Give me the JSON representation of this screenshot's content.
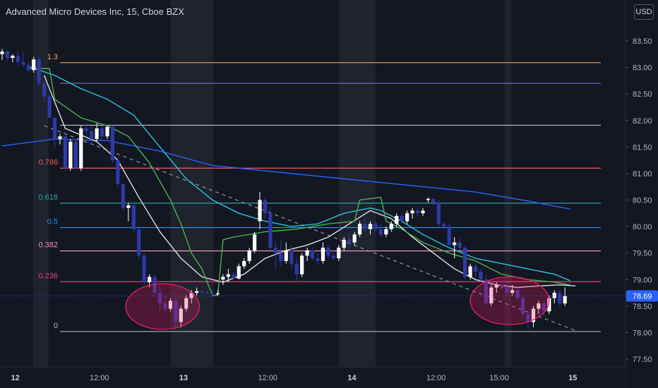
{
  "header": {
    "title": "Advanced Micro Devices Inc, 15, Cboe BZX",
    "currency_button": "USD"
  },
  "colors": {
    "background": "#131722",
    "up_candle": "#ffffff",
    "down_candle": "#2e39a8",
    "fib_1_3": "#f0a35a",
    "fib_1_0": "#7e57c2",
    "fib_0_786": "#f2565b",
    "fib_0_618": "#26a69a",
    "fib_0_5": "#2196f3",
    "fib_0_382": "#f48fb1",
    "fib_0_236": "#ec407a",
    "fib_0": "#b2b5be",
    "sma_slow": "#2962ff",
    "sma_mid": "#26c6da",
    "sma_fast": "#e0e0e0",
    "sma_step": "#4caf50",
    "trendline": "#9598a1",
    "highlight_ellipse": "#e91e63",
    "last_price_badge": "#2962ff"
  },
  "chart_data": {
    "type": "candlestick",
    "symbol": "Advanced Micro Devices Inc",
    "interval": "15",
    "exchange": "Cboe BZX",
    "currency": "USD",
    "ylim": [
      77.4,
      84.0
    ],
    "y_ticks": [
      "83.50",
      "83.00",
      "82.50",
      "82.00",
      "81.50",
      "81.00",
      "80.50",
      "80.00",
      "79.50",
      "79.00",
      "78.50",
      "78.00",
      "77.50"
    ],
    "x_ticks": [
      {
        "label": "12",
        "bold": true,
        "bar": 2.5
      },
      {
        "label": "12:00",
        "bold": false,
        "bar": 18.5
      },
      {
        "label": "13",
        "bold": true,
        "bar": 34.5
      },
      {
        "label": "12:00",
        "bold": false,
        "bar": 50.5
      },
      {
        "label": "14",
        "bold": true,
        "bar": 66.5
      },
      {
        "label": "12:00",
        "bold": false,
        "bar": 82.5
      },
      {
        "label": "15:00",
        "bold": false,
        "bar": 94.5
      },
      {
        "label": "15",
        "bold": true,
        "bar": 108.5
      }
    ],
    "last_price": 78.69,
    "fib_levels": [
      {
        "label": "1.3",
        "value": 83.09,
        "color_key": "fib_1_3"
      },
      {
        "label": "",
        "value": 82.7,
        "color_key": "fib_1_0"
      },
      {
        "label": "",
        "value": 81.91,
        "color_key": "fib_0"
      },
      {
        "label": "0.786",
        "value": 81.1,
        "color_key": "fib_0_786"
      },
      {
        "label": "0.618",
        "value": 80.44,
        "color_key": "fib_0_618"
      },
      {
        "label": "0.5",
        "value": 79.98,
        "color_key": "fib_0_5"
      },
      {
        "label": "0.382",
        "value": 79.54,
        "color_key": "fib_0_382"
      },
      {
        "label": "0.236",
        "value": 78.96,
        "color_key": "fib_0_236"
      },
      {
        "label": "0",
        "value": 78.02,
        "color_key": "fib_0"
      }
    ],
    "session_shading_bars": [
      [
        5.9,
        8.8
      ],
      [
        32.0,
        40.2
      ],
      [
        64.0,
        71.0
      ],
      [
        95.5,
        96.8
      ]
    ],
    "trendline": {
      "from": [
        8.0,
        81.9
      ],
      "to": [
        109.5,
        78.02
      ]
    },
    "ellipses": [
      {
        "bar": 30.5,
        "value": 78.49,
        "rx_bars": 7.0,
        "ry_value": 0.43
      },
      {
        "bar": 96.5,
        "value": 78.6,
        "rx_bars": 7.5,
        "ry_value": 0.45
      }
    ],
    "candles": [
      [
        83.25,
        83.35,
        83.14,
        83.3
      ],
      [
        83.3,
        83.32,
        83.12,
        83.18
      ],
      [
        83.18,
        83.25,
        83.1,
        83.22
      ],
      [
        83.22,
        83.3,
        83.02,
        83.1
      ],
      [
        83.1,
        83.3,
        83.0,
        83.05
      ],
      [
        83.05,
        83.1,
        82.9,
        82.95
      ],
      [
        82.95,
        83.2,
        82.9,
        83.15
      ],
      [
        83.15,
        83.2,
        82.65,
        82.7
      ],
      [
        82.7,
        82.75,
        82.35,
        82.45
      ],
      [
        82.45,
        82.5,
        82.05,
        82.05
      ],
      [
        82.05,
        82.05,
        81.5,
        81.65
      ],
      [
        81.65,
        81.75,
        81.55,
        81.7
      ],
      [
        81.7,
        81.8,
        81.05,
        81.1
      ],
      [
        81.1,
        81.65,
        81.05,
        81.6
      ],
      [
        81.6,
        81.65,
        81.1,
        81.1
      ],
      [
        81.1,
        81.9,
        81.05,
        81.85
      ],
      [
        81.85,
        81.95,
        81.7,
        81.8
      ],
      [
        81.8,
        81.9,
        81.55,
        81.65
      ],
      [
        81.65,
        81.95,
        81.6,
        81.85
      ],
      [
        81.85,
        81.9,
        81.6,
        81.7
      ],
      [
        81.7,
        81.9,
        81.65,
        81.88
      ],
      [
        81.88,
        81.9,
        81.2,
        81.25
      ],
      [
        81.25,
        81.3,
        80.75,
        80.8
      ],
      [
        80.8,
        80.8,
        80.3,
        80.35
      ],
      [
        80.35,
        80.45,
        80.1,
        80.4
      ],
      [
        80.4,
        80.42,
        79.9,
        79.95
      ],
      [
        79.95,
        80.0,
        79.4,
        79.45
      ],
      [
        79.45,
        79.5,
        78.9,
        78.95
      ],
      [
        78.95,
        79.1,
        78.85,
        79.05
      ],
      [
        79.05,
        79.1,
        78.7,
        78.75
      ],
      [
        78.75,
        78.9,
        78.4,
        78.55
      ],
      [
        78.55,
        78.7,
        78.35,
        78.45
      ],
      [
        78.45,
        78.65,
        78.4,
        78.6
      ],
      [
        78.6,
        78.65,
        78.05,
        78.2
      ],
      [
        78.2,
        78.5,
        78.1,
        78.45
      ],
      [
        78.45,
        78.7,
        78.4,
        78.65
      ],
      [
        78.65,
        78.8,
        78.55,
        78.75
      ],
      [
        78.75,
        78.85,
        78.7,
        78.78
      ],
      [
        78.78,
        78.8,
        78.72,
        78.76
      ],
      [
        78.76,
        78.8,
        78.72,
        78.74
      ],
      [
        78.74,
        78.8,
        78.7,
        78.72
      ],
      [
        78.72,
        78.8,
        78.7,
        78.74
      ],
      [
        79.0,
        79.1,
        78.9,
        79.05
      ],
      [
        79.05,
        79.2,
        78.95,
        79.1
      ],
      [
        79.1,
        79.15,
        79.0,
        79.02
      ],
      [
        79.02,
        79.3,
        79.0,
        79.25
      ],
      [
        79.25,
        79.4,
        79.2,
        79.35
      ],
      [
        79.35,
        79.6,
        79.3,
        79.55
      ],
      [
        79.55,
        79.9,
        79.5,
        79.85
      ],
      [
        80.1,
        80.65,
        79.95,
        80.5
      ],
      [
        80.5,
        80.55,
        80.15,
        80.25
      ],
      [
        80.25,
        80.35,
        79.55,
        79.6
      ],
      [
        79.6,
        79.7,
        79.2,
        79.5
      ],
      [
        79.5,
        79.75,
        79.25,
        79.35
      ],
      [
        79.35,
        79.7,
        79.3,
        79.55
      ],
      [
        79.55,
        79.65,
        79.2,
        79.3
      ],
      [
        79.3,
        79.4,
        78.95,
        79.1
      ],
      [
        79.1,
        79.5,
        79.05,
        79.45
      ],
      [
        79.45,
        79.6,
        79.35,
        79.55
      ],
      [
        79.55,
        79.6,
        79.35,
        79.4
      ],
      [
        79.4,
        79.5,
        79.3,
        79.35
      ],
      [
        79.35,
        79.7,
        79.3,
        79.6
      ],
      [
        79.6,
        79.65,
        79.4,
        79.45
      ],
      [
        79.45,
        79.55,
        79.35,
        79.4
      ],
      [
        79.4,
        79.65,
        79.35,
        79.6
      ],
      [
        79.6,
        79.8,
        79.55,
        79.75
      ],
      [
        79.75,
        79.85,
        79.6,
        79.7
      ],
      [
        79.7,
        79.9,
        79.65,
        79.85
      ],
      [
        79.85,
        80.1,
        79.8,
        80.05
      ],
      [
        80.05,
        80.15,
        79.9,
        79.95
      ],
      [
        79.95,
        80.1,
        79.85,
        80.05
      ],
      [
        80.05,
        80.1,
        79.9,
        79.95
      ],
      [
        79.95,
        80.05,
        79.8,
        79.85
      ],
      [
        79.85,
        80.0,
        79.8,
        79.95
      ],
      [
        79.95,
        80.1,
        79.9,
        80.05
      ],
      [
        80.05,
        80.25,
        80.0,
        80.2
      ],
      [
        80.2,
        80.25,
        80.05,
        80.1
      ],
      [
        80.1,
        80.3,
        80.05,
        80.25
      ],
      [
        80.25,
        80.35,
        80.15,
        80.3
      ],
      [
        80.3,
        80.35,
        80.2,
        80.25
      ],
      [
        80.25,
        80.35,
        80.2,
        80.3
      ],
      [
        80.5,
        80.55,
        80.45,
        80.52
      ],
      [
        80.52,
        80.55,
        80.4,
        80.45
      ],
      [
        80.45,
        80.5,
        80.0,
        80.05
      ],
      [
        80.05,
        80.1,
        79.95,
        80.0
      ],
      [
        80.0,
        80.05,
        79.6,
        79.65
      ],
      [
        79.65,
        79.8,
        79.4,
        79.7
      ],
      [
        79.7,
        79.8,
        79.55,
        79.6
      ],
      [
        79.6,
        79.65,
        79.0,
        79.05
      ],
      [
        79.05,
        79.3,
        79.0,
        79.25
      ],
      [
        79.25,
        79.3,
        79.05,
        79.15
      ],
      [
        79.15,
        79.2,
        78.95,
        79.0
      ],
      [
        79.0,
        79.1,
        78.5,
        78.55
      ],
      [
        78.55,
        78.9,
        78.5,
        78.85
      ],
      [
        78.85,
        78.95,
        78.75,
        78.9
      ],
      [
        78.9,
        79.0,
        78.8,
        78.85
      ],
      [
        78.85,
        78.95,
        78.7,
        78.75
      ],
      [
        78.75,
        78.9,
        78.7,
        78.8
      ],
      [
        78.8,
        78.85,
        78.6,
        78.65
      ],
      [
        78.65,
        78.7,
        78.3,
        78.35
      ],
      [
        78.35,
        78.4,
        78.05,
        78.2
      ],
      [
        78.2,
        78.5,
        78.1,
        78.45
      ],
      [
        78.45,
        78.6,
        78.35,
        78.55
      ],
      [
        78.55,
        78.6,
        78.3,
        78.4
      ],
      [
        78.4,
        78.7,
        78.35,
        78.65
      ],
      [
        78.65,
        78.8,
        78.55,
        78.75
      ],
      [
        78.75,
        78.8,
        78.5,
        78.55
      ],
      [
        78.55,
        78.85,
        78.5,
        78.69
      ]
    ],
    "series": [
      {
        "name": "",
        "color_key": "sma_slow",
        "points": [
          [
            0,
            81.52
          ],
          [
            10,
            81.65
          ],
          [
            20,
            81.62
          ],
          [
            30,
            81.42
          ],
          [
            40,
            81.15
          ],
          [
            50,
            81.05
          ],
          [
            60,
            80.95
          ],
          [
            70,
            80.85
          ],
          [
            80,
            80.75
          ],
          [
            90,
            80.65
          ],
          [
            100,
            80.48
          ],
          [
            108,
            80.33
          ]
        ]
      },
      {
        "name": "",
        "color_key": "sma_mid",
        "points": [
          [
            5,
            83.02
          ],
          [
            10,
            82.85
          ],
          [
            15,
            82.6
          ],
          [
            20,
            82.4
          ],
          [
            25,
            82.1
          ],
          [
            30,
            81.5
          ],
          [
            35,
            80.9
          ],
          [
            40,
            80.5
          ],
          [
            45,
            80.25
          ],
          [
            50,
            80.1
          ],
          [
            55,
            80.0
          ],
          [
            60,
            80.05
          ],
          [
            65,
            80.25
          ],
          [
            70,
            80.35
          ],
          [
            72,
            80.3
          ],
          [
            76,
            80.1
          ],
          [
            80,
            79.85
          ],
          [
            85,
            79.6
          ],
          [
            90,
            79.4
          ],
          [
            95,
            79.3
          ],
          [
            100,
            79.2
          ],
          [
            105,
            79.1
          ],
          [
            108,
            78.98
          ]
        ]
      },
      {
        "name": "",
        "color_key": "sma_fast",
        "points": [
          [
            8,
            82.85
          ],
          [
            12,
            81.85
          ],
          [
            18,
            81.6
          ],
          [
            22,
            81.25
          ],
          [
            26,
            80.55
          ],
          [
            30,
            79.9
          ],
          [
            34,
            79.4
          ],
          [
            38,
            79.05
          ],
          [
            42,
            78.95
          ],
          [
            46,
            79.1
          ],
          [
            50,
            79.4
          ],
          [
            54,
            79.55
          ],
          [
            58,
            79.65
          ],
          [
            62,
            79.8
          ],
          [
            66,
            80.05
          ],
          [
            70,
            80.3
          ],
          [
            74,
            80.15
          ],
          [
            78,
            79.8
          ],
          [
            82,
            79.5
          ],
          [
            86,
            79.2
          ],
          [
            90,
            79.0
          ],
          [
            94,
            78.9
          ],
          [
            98,
            78.85
          ],
          [
            102,
            78.88
          ],
          [
            106,
            78.9
          ],
          [
            109,
            78.88
          ]
        ]
      },
      {
        "name": "",
        "color_key": "sma_step",
        "points": [
          [
            5,
            82.98
          ],
          [
            9,
            82.98
          ],
          [
            10,
            82.4
          ],
          [
            15,
            82.05
          ],
          [
            20,
            81.9
          ],
          [
            24,
            81.7
          ],
          [
            28,
            81.2
          ],
          [
            32,
            80.5
          ],
          [
            34,
            80.05
          ],
          [
            36,
            79.5
          ],
          [
            38,
            79.2
          ],
          [
            40,
            78.7
          ],
          [
            41,
            78.7
          ],
          [
            42,
            79.75
          ],
          [
            44,
            79.8
          ],
          [
            50,
            79.9
          ],
          [
            56,
            79.95
          ],
          [
            62,
            80.05
          ],
          [
            67,
            80.1
          ],
          [
            68,
            80.5
          ],
          [
            72,
            80.55
          ],
          [
            73,
            80.1
          ],
          [
            76,
            79.95
          ],
          [
            80,
            79.7
          ],
          [
            85,
            79.5
          ],
          [
            90,
            79.35
          ],
          [
            95,
            79.1
          ],
          [
            100,
            79.0
          ],
          [
            105,
            78.95
          ],
          [
            108,
            78.9
          ]
        ]
      }
    ]
  }
}
